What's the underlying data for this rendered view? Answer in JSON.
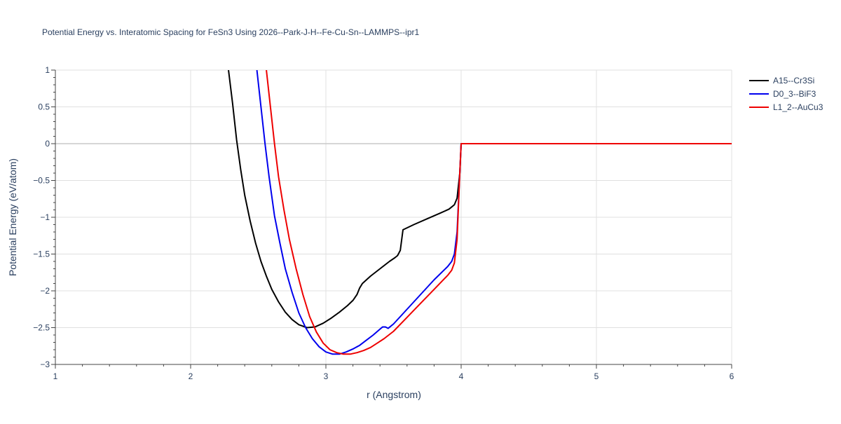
{
  "chart_data": {
    "type": "line",
    "title": "Potential Energy vs. Interatomic Spacing for FeSn3 Using 2026--Park-J-H--Fe-Cu-Sn--LAMMPS--ipr1",
    "xlabel": "r (Angstrom)",
    "ylabel": "Potential Energy (eV/atom)",
    "xlim": [
      1,
      6
    ],
    "ylim": [
      -3,
      1
    ],
    "xticks": [
      1,
      2,
      3,
      4,
      5,
      6
    ],
    "xtick_labels": [
      "1",
      "2",
      "3",
      "4",
      "5",
      "6"
    ],
    "yticks": [
      1,
      0.5,
      0,
      -0.5,
      -1,
      -1.5,
      -2,
      -2.5,
      -3
    ],
    "ytick_labels": [
      "1",
      "0.5",
      "0",
      "−0.5",
      "−1",
      "−1.5",
      "−2",
      "−2.5",
      "−3"
    ],
    "grid": true,
    "legend_position": "top-right",
    "series": [
      {
        "name": "A15--Cr3Si",
        "color": "#000000",
        "x": [
          2.28,
          2.31,
          2.34,
          2.37,
          2.4,
          2.44,
          2.48,
          2.52,
          2.56,
          2.6,
          2.65,
          2.7,
          2.75,
          2.8,
          2.86,
          2.92,
          2.98,
          3.04,
          3.1,
          3.16,
          3.2,
          3.23,
          3.25,
          3.27,
          3.33,
          3.4,
          3.47,
          3.51,
          3.53,
          3.55,
          3.57,
          3.65,
          3.75,
          3.85,
          3.91,
          3.93,
          3.95,
          3.97,
          3.99,
          4.0,
          4.5,
          5.0,
          5.5,
          6.0
        ],
        "y": [
          1.0,
          0.55,
          0.05,
          -0.35,
          -0.7,
          -1.05,
          -1.35,
          -1.6,
          -1.8,
          -1.98,
          -2.15,
          -2.29,
          -2.39,
          -2.46,
          -2.5,
          -2.49,
          -2.44,
          -2.37,
          -2.29,
          -2.2,
          -2.13,
          -2.05,
          -1.96,
          -1.9,
          -1.8,
          -1.7,
          -1.6,
          -1.55,
          -1.52,
          -1.45,
          -1.17,
          -1.1,
          -1.02,
          -0.94,
          -0.89,
          -0.86,
          -0.83,
          -0.74,
          -0.4,
          0.0,
          0.0,
          0.0,
          0.0,
          0.0
        ]
      },
      {
        "name": "D0_3--BiF3",
        "color": "#0000ee",
        "x": [
          2.49,
          2.52,
          2.55,
          2.58,
          2.62,
          2.66,
          2.7,
          2.75,
          2.8,
          2.85,
          2.9,
          2.95,
          3.0,
          3.05,
          3.1,
          3.15,
          3.2,
          3.25,
          3.3,
          3.35,
          3.4,
          3.42,
          3.44,
          3.46,
          3.5,
          3.6,
          3.7,
          3.8,
          3.9,
          3.93,
          3.95,
          3.97,
          3.99,
          4.0,
          4.5,
          5.0,
          5.5,
          6.0
        ],
        "y": [
          1.0,
          0.5,
          0.0,
          -0.45,
          -0.98,
          -1.35,
          -1.7,
          -2.02,
          -2.3,
          -2.5,
          -2.65,
          -2.76,
          -2.83,
          -2.86,
          -2.86,
          -2.83,
          -2.79,
          -2.74,
          -2.67,
          -2.6,
          -2.52,
          -2.49,
          -2.49,
          -2.51,
          -2.45,
          -2.25,
          -2.05,
          -1.85,
          -1.67,
          -1.6,
          -1.5,
          -1.2,
          -0.4,
          0.0,
          0.0,
          0.0,
          0.0,
          0.0
        ]
      },
      {
        "name": "L1_2--AuCu3",
        "color": "#ee0000",
        "x": [
          2.56,
          2.59,
          2.62,
          2.65,
          2.69,
          2.73,
          2.78,
          2.83,
          2.88,
          2.93,
          2.98,
          3.03,
          3.08,
          3.13,
          3.18,
          3.23,
          3.28,
          3.33,
          3.38,
          3.43,
          3.5,
          3.6,
          3.7,
          3.8,
          3.9,
          3.93,
          3.95,
          3.97,
          3.99,
          4.0,
          4.5,
          5.0,
          5.5,
          6.0
        ],
        "y": [
          1.0,
          0.5,
          0.0,
          -0.45,
          -0.9,
          -1.3,
          -1.7,
          -2.05,
          -2.35,
          -2.56,
          -2.71,
          -2.8,
          -2.84,
          -2.86,
          -2.86,
          -2.84,
          -2.81,
          -2.77,
          -2.71,
          -2.65,
          -2.55,
          -2.36,
          -2.17,
          -1.98,
          -1.79,
          -1.72,
          -1.62,
          -1.3,
          -0.4,
          0.0,
          0.0,
          0.0,
          0.0,
          0.0
        ]
      }
    ]
  }
}
